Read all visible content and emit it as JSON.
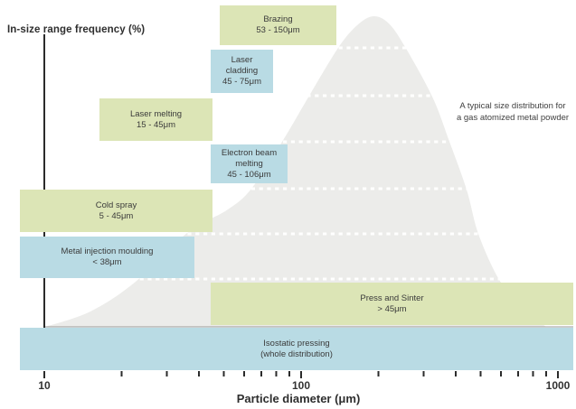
{
  "title": "In-size range frequency (%)",
  "x_axis_label": "Particle diameter (μm)",
  "annotation_lines": [
    "A typical size distribution for",
    "a gas atomized metal powder"
  ],
  "colors": {
    "process_green": "#dce5b6",
    "process_blue": "#b9dbe4",
    "distribution_fill": "#ececea",
    "axis": "#2b2b2b",
    "baseline": "#9a9a98",
    "text": "#3a3a3a"
  },
  "chart_data": {
    "type": "range-bars-over-distribution",
    "x_axis": {
      "label": "Particle diameter (μm)",
      "scale": "log",
      "tick_labels": [
        "10",
        "100",
        "1000"
      ],
      "tick_values": [
        10,
        100,
        1000
      ],
      "range_um": [
        10,
        1000
      ],
      "minor_ticks": [
        20,
        30,
        40,
        50,
        60,
        70,
        80,
        90,
        200,
        300,
        400,
        500,
        600,
        700,
        800,
        900
      ]
    },
    "y_axis": {
      "label": "In-size range frequency (%)",
      "tick_labels": []
    },
    "distribution": {
      "description": "A typical size distribution for a gas atomized metal powder",
      "shape": "log-normal bell curve",
      "peak_um": 190,
      "approx_span_um": [
        10,
        900
      ]
    },
    "processes": [
      {
        "id": "brazing",
        "name": "Brazing",
        "range": "53 - 150μm",
        "min_um": 53,
        "max_um": 150,
        "color": "green",
        "lines": [
          "Brazing",
          "53 - 150μm"
        ]
      },
      {
        "id": "laser-cladding",
        "name": "Laser cladding",
        "range": "45 - 75μm",
        "min_um": 45,
        "max_um": 75,
        "color": "blue",
        "lines": [
          "Laser",
          "cladding",
          "45 - 75μm"
        ]
      },
      {
        "id": "laser-melting",
        "name": "Laser melting",
        "range": "15 - 45μm",
        "min_um": 15,
        "max_um": 45,
        "color": "green",
        "lines": [
          "Laser melting",
          "15 - 45μm"
        ]
      },
      {
        "id": "electron-beam-melting",
        "name": "Electron beam melting",
        "range": "45 - 106μm",
        "min_um": 45,
        "max_um": 106,
        "color": "blue",
        "lines": [
          "Electron beam",
          "melting",
          "45 - 106μm"
        ]
      },
      {
        "id": "cold-spray",
        "name": "Cold spray",
        "range": "5 - 45μm",
        "min_um": 5,
        "max_um": 45,
        "color": "green",
        "lines": [
          "Cold spray",
          "5 - 45μm"
        ]
      },
      {
        "id": "metal-injection-moulding",
        "name": "Metal injection moulding",
        "range": "< 38μm",
        "max_um": 38,
        "color": "blue",
        "lines": [
          "Metal injection moulding",
          "< 38μm"
        ]
      },
      {
        "id": "press-and-sinter",
        "name": "Press and Sinter",
        "range": "> 45μm",
        "min_um": 45,
        "color": "green",
        "lines": [
          "Press and Sinter",
          "> 45μm"
        ]
      },
      {
        "id": "isostatic-pressing",
        "name": "Isostatic pressing",
        "range": "(whole distribution)",
        "color": "blue",
        "lines": [
          "Isostatic pressing",
          "(whole distribution)"
        ]
      }
    ]
  }
}
